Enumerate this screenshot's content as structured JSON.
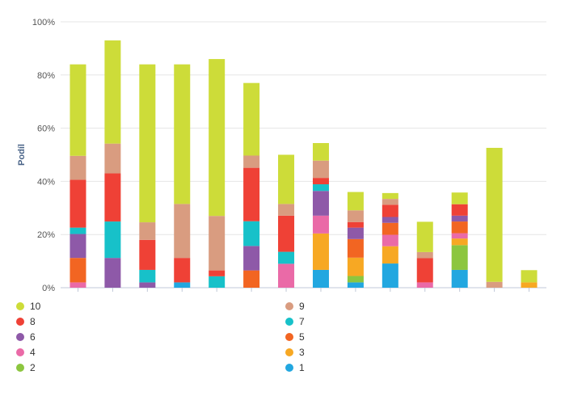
{
  "chart_data": {
    "type": "bar",
    "stacked": true,
    "categories": [
      "",
      "",
      "",
      "",
      "",
      "",
      "",
      "",
      "",
      "",
      "",
      "",
      "",
      ""
    ],
    "ylabel": "Podíl",
    "xlabel": "",
    "ylim": [
      0,
      100
    ],
    "yticks": [
      "0%",
      "20%",
      "40%",
      "60%",
      "80%",
      "100%"
    ],
    "grid": true,
    "legend_position": "bottom",
    "series": [
      {
        "name": "1",
        "color": "#22a7e0",
        "values": [
          0,
          0,
          0,
          2,
          0,
          0,
          0,
          6.7,
          2,
          9.1,
          0,
          6.7,
          0,
          0
        ]
      },
      {
        "name": "2",
        "color": "#8cc63f",
        "values": [
          0,
          0,
          0,
          0,
          0,
          0,
          0,
          0,
          2.4,
          0,
          0,
          9.3,
          0,
          0
        ]
      },
      {
        "name": "3",
        "color": "#f7a823",
        "values": [
          0,
          0,
          0,
          0,
          0,
          0,
          0,
          13.7,
          6.9,
          6.5,
          0,
          2.5,
          0,
          2
        ]
      },
      {
        "name": "4",
        "color": "#ea6aa7",
        "values": [
          2,
          0,
          0,
          0,
          0,
          0,
          9,
          6.7,
          0,
          4.3,
          2,
          2,
          0,
          0
        ]
      },
      {
        "name": "5",
        "color": "#f26522",
        "values": [
          9.2,
          0,
          0,
          0,
          0,
          6.5,
          0,
          0,
          7,
          4.5,
          0,
          4.4,
          0,
          0
        ]
      },
      {
        "name": "6",
        "color": "#8e59a8",
        "values": [
          9,
          11.2,
          2,
          0,
          0,
          9.2,
          0,
          9.3,
          4.3,
          2.2,
          0,
          2.2,
          0,
          0
        ]
      },
      {
        "name": "7",
        "color": "#17c1c9",
        "values": [
          2.4,
          13.7,
          4.7,
          0,
          4.3,
          9.3,
          4.5,
          2.5,
          0,
          0,
          0,
          0,
          0,
          0
        ]
      },
      {
        "name": "8",
        "color": "#ef4136",
        "values": [
          18,
          18.1,
          11.3,
          9.2,
          2.2,
          20.1,
          13.6,
          2.4,
          2.1,
          4.6,
          9.1,
          4.3,
          0,
          0
        ]
      },
      {
        "name": "9",
        "color": "#d99c80",
        "values": [
          9,
          11.2,
          6.6,
          20.3,
          20.5,
          4.6,
          4.4,
          6.5,
          4.4,
          2.2,
          2.3,
          0,
          2.2,
          0
        ]
      },
      {
        "name": "10",
        "color": "#cddc39",
        "values": [
          34.4,
          38.8,
          59.4,
          52.5,
          59,
          27.3,
          18.5,
          6.6,
          6.9,
          2.2,
          11.4,
          4.4,
          50.4,
          4.6
        ]
      }
    ]
  }
}
